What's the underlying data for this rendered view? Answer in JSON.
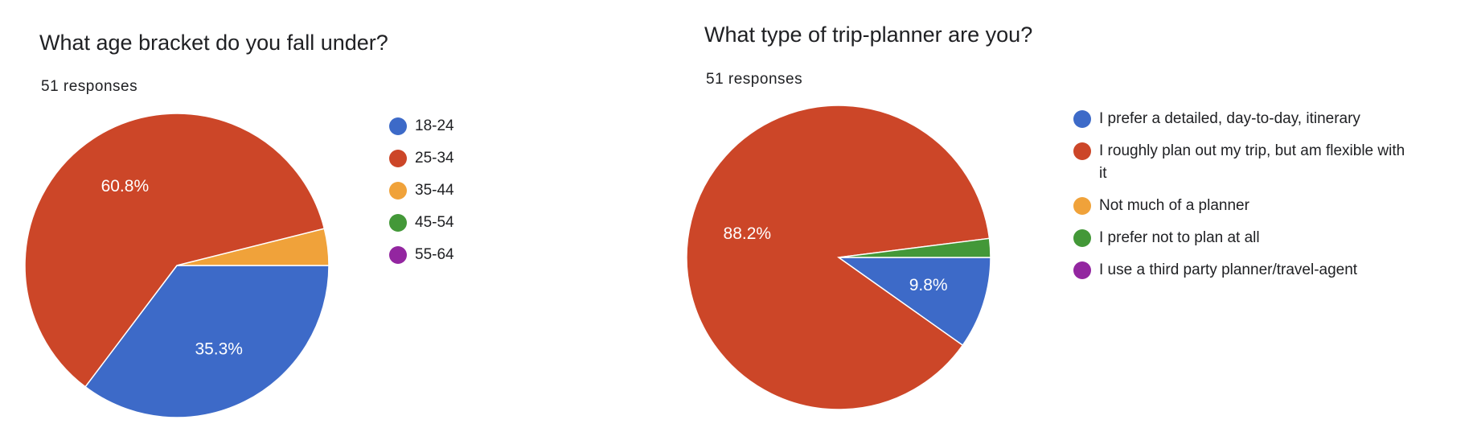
{
  "chart_data": [
    {
      "type": "pie",
      "title": "What age bracket do you fall under?",
      "subtitle": "51 responses",
      "categories": [
        "18-24",
        "25-34",
        "35-44",
        "45-54",
        "55-64"
      ],
      "values": [
        35.3,
        60.8,
        3.9,
        0,
        0
      ],
      "value_labels": [
        "35.3%",
        "60.8%",
        null,
        null,
        null
      ],
      "colors": [
        "#3d6ac8",
        "#cc4628",
        "#f0a23a",
        "#439838",
        "#9326a0"
      ]
    },
    {
      "type": "pie",
      "title": "What type of trip-planner are you?",
      "subtitle": "51 responses",
      "categories": [
        "I prefer a detailed, day-to-day, itinerary",
        "I roughly plan out my trip, but am flexible with it",
        "Not much of a planner",
        "I prefer not to plan at all",
        "I use a third party planner/travel-agent"
      ],
      "values": [
        9.8,
        88.2,
        0,
        2.0,
        0
      ],
      "value_labels": [
        "9.8%",
        "88.2%",
        null,
        null,
        null
      ],
      "colors": [
        "#3d6ac8",
        "#cc4628",
        "#f0a23a",
        "#439838",
        "#9326a0"
      ]
    }
  ]
}
